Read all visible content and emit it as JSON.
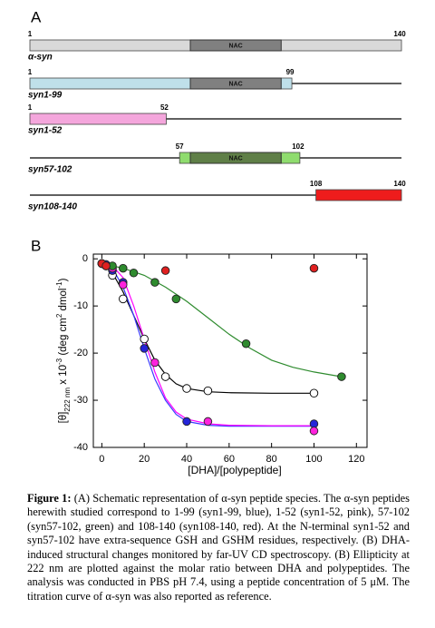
{
  "panel_a": {
    "panel_label": "A",
    "nac_label": "NAC",
    "constructs": [
      {
        "label": "α-syn",
        "start": 1,
        "end": 140,
        "color": "#d9d9d9",
        "nac": true,
        "nac_color": "#808080"
      },
      {
        "label": "syn1-99",
        "start": 1,
        "end": 99,
        "color": "#bfe0ea",
        "nac": true,
        "nac_color": "#808080"
      },
      {
        "label": "syn1-52",
        "start": 1,
        "end": 52,
        "color": "#f4a6dc",
        "nac": false
      },
      {
        "label": "syn57-102",
        "start": 57,
        "end": 102,
        "color": "#8fdc6e",
        "nac": true,
        "nac_color": "#5f7f47"
      },
      {
        "label": "syn108-140",
        "start": 108,
        "end": 140,
        "color": "#ee1c1c",
        "nac": false
      }
    ]
  },
  "chart_data": {
    "type": "scatter",
    "panel_label": "B",
    "x_label": "[DHA]/[polypeptide]",
    "y_label": [
      "[θ]",
      "222 nm",
      " x 10",
      "-3",
      " (deg cm",
      "2",
      " dmol",
      "-1",
      ")"
    ],
    "xlim": [
      -4,
      125
    ],
    "ylim": [
      -40,
      1
    ],
    "xticks": [
      0,
      20,
      40,
      60,
      80,
      100,
      120
    ],
    "yticks": [
      0,
      -10,
      -20,
      -30,
      -40
    ],
    "series": [
      {
        "color": "#000000",
        "filled": false,
        "line_color": "#000000",
        "x": [
          0,
          2,
          5,
          10,
          20,
          30,
          40,
          50,
          100
        ],
        "values": [
          -1,
          -1.5,
          -3.5,
          -8.5,
          -17,
          -25,
          -27.5,
          -28,
          -28.5
        ],
        "fit_x": [
          0,
          5,
          10,
          15,
          20,
          25,
          30,
          35,
          40,
          50,
          60,
          80,
          100
        ],
        "fit_values": [
          -1,
          -3,
          -7,
          -12,
          -17,
          -21.5,
          -24.5,
          -26.5,
          -27.5,
          -28.2,
          -28.4,
          -28.5,
          -28.5
        ]
      },
      {
        "color": "#2424d8",
        "filled": true,
        "line_color": "#3a3aff",
        "x": [
          0,
          2,
          5,
          10,
          20,
          40,
          100
        ],
        "values": [
          -1,
          -1.2,
          -2.5,
          -5,
          -19,
          -34.5,
          -35
        ],
        "fit_x": [
          0,
          5,
          10,
          15,
          20,
          25,
          30,
          35,
          40,
          50,
          60,
          80,
          100
        ],
        "fit_values": [
          -1,
          -2,
          -6,
          -12,
          -19,
          -25.5,
          -30,
          -33,
          -34.5,
          -35.3,
          -35.5,
          -35.5,
          -35.5
        ]
      },
      {
        "color": "#ff22dd",
        "filled": true,
        "line_color": "#ff00ff",
        "x": [
          0,
          2,
          5,
          10,
          25,
          50,
          100
        ],
        "values": [
          -1,
          -1.5,
          -2,
          -5.5,
          -22,
          -34.5,
          -36.5
        ],
        "fit_x": [
          0,
          5,
          10,
          15,
          20,
          25,
          30,
          35,
          40,
          50,
          60,
          80,
          100
        ],
        "fit_values": [
          -1,
          -1.5,
          -4,
          -10,
          -17,
          -24,
          -29.5,
          -32.5,
          -34,
          -35,
          -35.3,
          -35.4,
          -35.4
        ]
      },
      {
        "color": "#2e8b2e",
        "filled": true,
        "line_color": "#2e8b2e",
        "x": [
          0,
          5,
          10,
          15,
          25,
          35,
          68,
          113
        ],
        "values": [
          -1,
          -1.5,
          -2,
          -3,
          -5,
          -8.5,
          -18,
          -25
        ],
        "fit_x": [
          0,
          10,
          20,
          30,
          40,
          50,
          60,
          70,
          80,
          90,
          100,
          113
        ],
        "fit_values": [
          -1,
          -2,
          -3.5,
          -6,
          -9,
          -12.5,
          -16,
          -19,
          -21.5,
          -23,
          -24,
          -25
        ]
      },
      {
        "color": "#e02020",
        "filled": true,
        "x": [
          0,
          2,
          30,
          100
        ],
        "values": [
          -1,
          -1.5,
          -2.5,
          -2
        ]
      }
    ]
  },
  "caption": {
    "label": "Figure 1:",
    "text": "(A) Schematic representation of α-syn peptide species. The α-syn peptides herewith studied correspond to 1-99 (syn1-99, blue), 1-52 (syn1-52, pink), 57-102 (syn57-102, green) and 108-140 (syn108-140, red). At the N-terminal syn1-52 and syn57-102 have extra-sequence GSH and GSHM residues, respectively. (B) DHA-induced structural changes monitored by far-UV CD spectroscopy. (B) Ellipticity at 222 nm are plotted against the molar ratio between DHA and polypeptides. The analysis was conducted in PBS pH 7.4, using a peptide concentration of 5 μM. The titration curve of α-syn was also reported as reference."
  }
}
